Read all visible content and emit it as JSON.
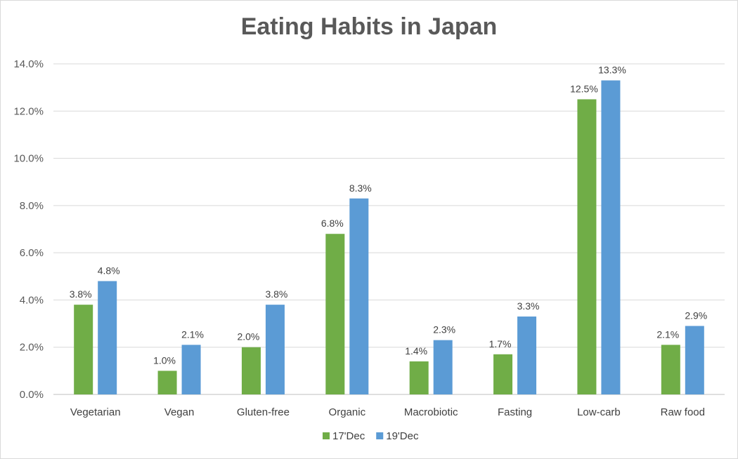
{
  "chart_data": {
    "type": "bar",
    "title": "Eating Habits in Japan",
    "xlabel": "",
    "ylabel": "",
    "ylim": [
      0,
      14
    ],
    "yticks": [
      "0.0%",
      "2.0%",
      "4.0%",
      "6.0%",
      "8.0%",
      "10.0%",
      "12.0%",
      "14.0%"
    ],
    "grid": true,
    "legend_position": "bottom",
    "categories": [
      "Vegetarian",
      "Vegan",
      "Gluten-free",
      "Organic",
      "Macrobiotic",
      "Fasting",
      "Low-carb",
      "Raw food"
    ],
    "series": [
      {
        "name": "17'Dec",
        "color": "#70ad47",
        "values": [
          3.8,
          1.0,
          2.0,
          6.8,
          1.4,
          1.7,
          12.5,
          2.1
        ],
        "labels": [
          "3.8%",
          "1.0%",
          "2.0%",
          "6.8%",
          "1.4%",
          "1.7%",
          "12.5%",
          "2.1%"
        ]
      },
      {
        "name": "19'Dec",
        "color": "#5b9bd5",
        "values": [
          4.8,
          2.1,
          3.8,
          8.3,
          2.3,
          3.3,
          13.3,
          2.9
        ],
        "labels": [
          "4.8%",
          "2.1%",
          "3.8%",
          "8.3%",
          "2.3%",
          "3.3%",
          "13.3%",
          "2.9%"
        ]
      }
    ]
  }
}
